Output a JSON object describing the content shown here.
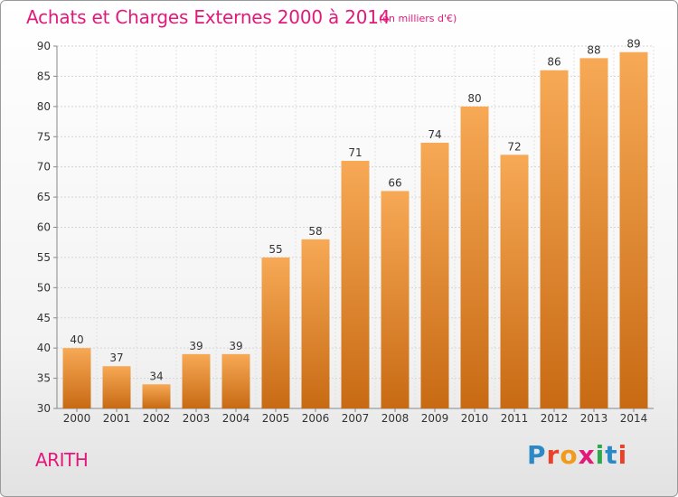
{
  "header": {
    "title": "Achats et Charges Externes 2000 à 2014",
    "subtitle": "(en milliers d'€)"
  },
  "footer": {
    "commune": "ARITH",
    "logo": "Proxiti"
  },
  "colors": {
    "title": "#e2197a",
    "bar_top": "#f7a955",
    "bar_bottom": "#c86a14"
  },
  "chart_data": {
    "type": "bar",
    "title": "Achats et Charges Externes 2000 à 2014",
    "subtitle": "(en milliers d'€)",
    "xlabel": "",
    "ylabel": "",
    "categories": [
      "2000",
      "2001",
      "2002",
      "2003",
      "2004",
      "2005",
      "2006",
      "2007",
      "2008",
      "2009",
      "2010",
      "2011",
      "2012",
      "2013",
      "2014"
    ],
    "values": [
      40,
      37,
      34,
      39,
      39,
      55,
      58,
      71,
      66,
      74,
      80,
      72,
      86,
      88,
      89
    ],
    "ylim": [
      30,
      90
    ],
    "yticks": [
      30,
      35,
      40,
      45,
      50,
      55,
      60,
      65,
      70,
      75,
      80,
      85,
      90
    ],
    "grid": true,
    "legend": "none"
  }
}
